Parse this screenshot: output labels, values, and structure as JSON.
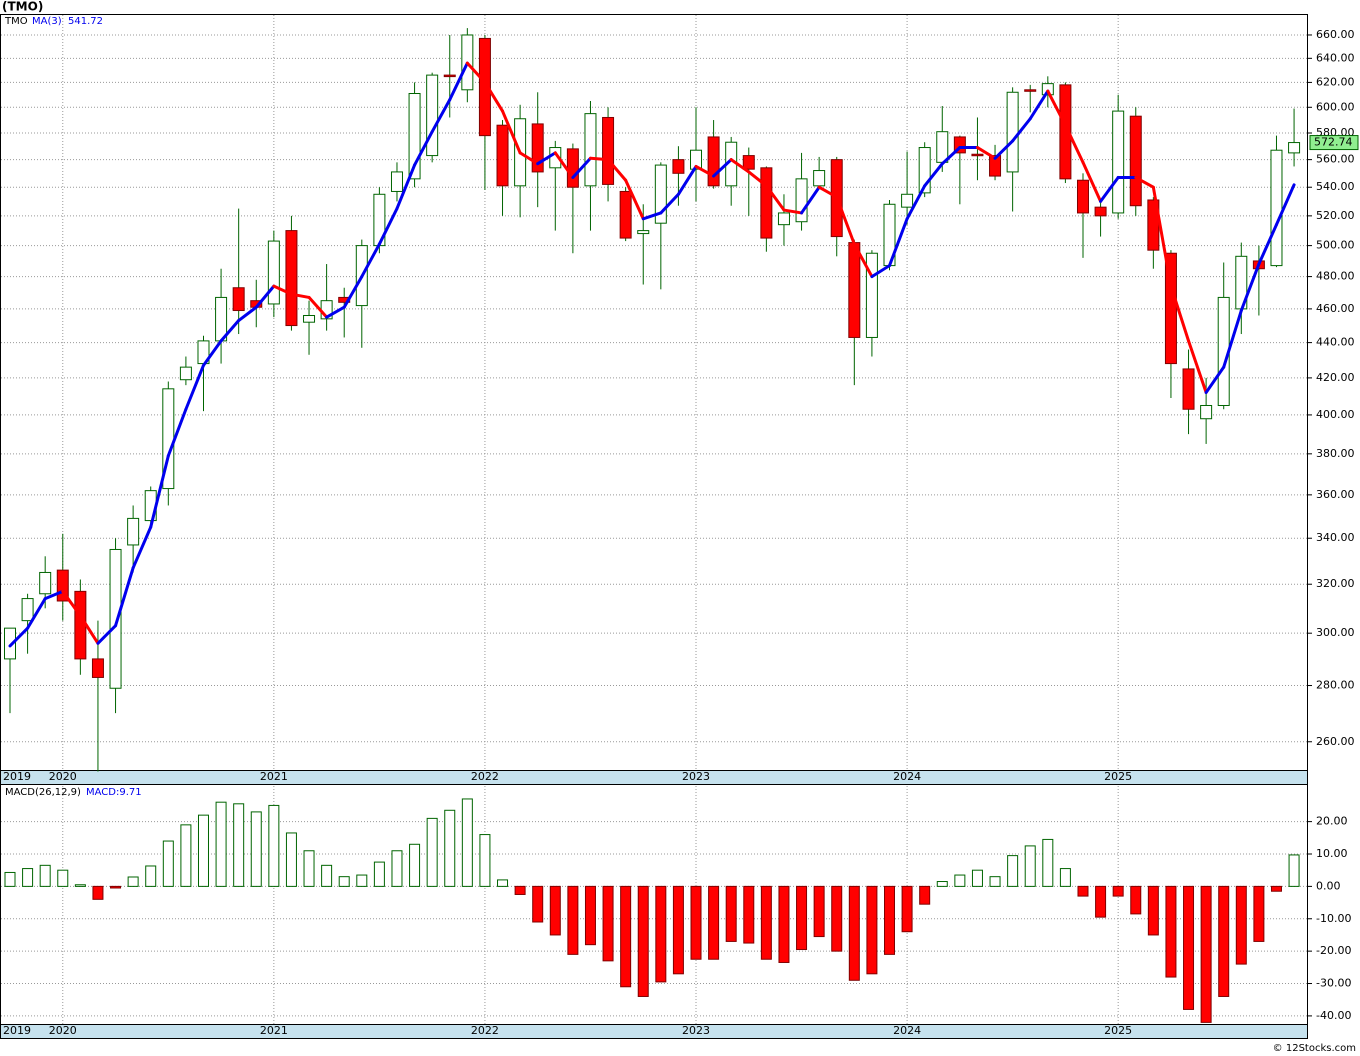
{
  "chart_data": [
    {
      "type": "candlestick",
      "title": "(TMO)",
      "symbol": "TMO",
      "log_scale": true,
      "grid": true,
      "categories": [
        "2019",
        null,
        null,
        "2020",
        null,
        null,
        null,
        null,
        null,
        null,
        null,
        null,
        null,
        null,
        null,
        "2021",
        null,
        null,
        null,
        null,
        null,
        null,
        null,
        null,
        null,
        null,
        null,
        "2022",
        null,
        null,
        null,
        null,
        null,
        null,
        null,
        null,
        null,
        null,
        null,
        "2023",
        null,
        null,
        null,
        null,
        null,
        null,
        null,
        null,
        null,
        null,
        null,
        "2024",
        null,
        null,
        null,
        null,
        null,
        null,
        null,
        null,
        null,
        null,
        null,
        "2025",
        null,
        null,
        null,
        null,
        null,
        null,
        null,
        null,
        null,
        null
      ],
      "open": [
        290,
        305,
        316,
        326,
        317,
        290,
        279,
        337,
        348,
        363,
        419,
        428,
        441,
        473,
        465,
        463,
        510,
        452,
        454,
        467,
        462,
        500,
        537,
        546,
        563,
        626,
        614,
        657,
        586,
        541,
        587,
        554,
        568,
        541,
        592,
        537,
        508,
        515,
        560,
        553,
        577,
        541,
        563,
        554,
        514,
        516,
        541,
        560,
        502,
        443,
        487,
        526,
        536,
        558,
        577,
        564,
        563,
        551,
        614,
        610,
        618,
        545,
        526,
        522,
        593,
        531,
        495,
        425,
        398,
        405,
        460,
        490,
        487,
        565
      ],
      "high": [
        302,
        316,
        332,
        342,
        322,
        305,
        340,
        355,
        364,
        418,
        432,
        444,
        485,
        525,
        478,
        510,
        520,
        465,
        488,
        473,
        504,
        540,
        558,
        620,
        628,
        660,
        666,
        660,
        590,
        602,
        612,
        574,
        572,
        605,
        600,
        540,
        528,
        558,
        570,
        600,
        590,
        577,
        569,
        555,
        535,
        565,
        562,
        562,
        504,
        497,
        531,
        566,
        573,
        601,
        578,
        592,
        571,
        616,
        618,
        625,
        620,
        550,
        529,
        610,
        600,
        533,
        497,
        436,
        420,
        489,
        502,
        500,
        578,
        599
      ],
      "low": [
        270,
        292,
        310,
        305,
        284,
        250,
        270,
        325,
        345,
        355,
        416,
        402,
        428,
        445,
        449,
        455,
        447,
        433,
        447,
        443,
        437,
        495,
        530,
        540,
        558,
        592,
        604,
        538,
        520,
        519,
        526,
        510,
        495,
        510,
        530,
        503,
        475,
        472,
        527,
        530,
        539,
        527,
        520,
        496,
        500,
        510,
        541,
        493,
        416,
        432,
        484,
        514,
        533,
        551,
        528,
        545,
        545,
        523,
        596,
        600,
        543,
        492,
        506,
        518,
        520,
        485,
        409,
        390,
        385,
        403,
        445,
        456,
        486,
        555
      ],
      "close": [
        302,
        314,
        325,
        313,
        290,
        283,
        335,
        349,
        362,
        414,
        426,
        441,
        467,
        459,
        461,
        503,
        450,
        456,
        465,
        464,
        500,
        535,
        551,
        611,
        626,
        625,
        660,
        578,
        541,
        591,
        551,
        569,
        540,
        595,
        542,
        505,
        510,
        556,
        550,
        567,
        541,
        573,
        553,
        505,
        522,
        546,
        552,
        506,
        443,
        495,
        528,
        535,
        569,
        581,
        565,
        563,
        548,
        612,
        613,
        619,
        546,
        522,
        520,
        597,
        527,
        497,
        428,
        403,
        405,
        467,
        493,
        485,
        567,
        572.74
      ],
      "up_color": "#006400",
      "down_color": "#ff0000",
      "tag_color": "#90ee90",
      "ma": {
        "name": "MA(3)",
        "color_up": "#0000ee",
        "color_down": "#ff0000",
        "values": [
          295,
          302,
          314,
          317,
          307,
          296,
          303,
          327,
          345,
          379,
          403,
          427,
          441,
          453,
          461,
          474,
          469,
          467,
          455,
          461,
          480,
          501,
          525,
          556,
          581,
          606,
          636,
          620,
          597,
          565,
          557,
          565,
          547,
          561,
          560,
          545,
          518,
          522,
          535,
          555,
          548,
          560,
          551,
          541,
          524,
          522,
          540,
          533,
          501,
          480,
          487,
          518,
          541,
          557,
          569,
          569,
          561,
          574,
          591,
          613,
          586,
          558,
          530,
          547,
          547,
          540,
          474,
          441,
          412,
          426,
          459,
          488,
          514,
          541.72
        ]
      },
      "ylim": [
        250.5,
        678.5
      ],
      "yticks": [
        {
          "value": 260,
          "label": "260.00"
        },
        {
          "value": 280,
          "label": "280.00"
        },
        {
          "value": 300,
          "label": "300.00"
        },
        {
          "value": 320,
          "label": "320.00"
        },
        {
          "value": 340,
          "label": "340.00"
        },
        {
          "value": 360,
          "label": "360.00"
        },
        {
          "value": 380,
          "label": "380.00"
        },
        {
          "value": 400,
          "label": "400.00"
        },
        {
          "value": 420,
          "label": "420.00"
        },
        {
          "value": 440,
          "label": "440.00"
        },
        {
          "value": 460,
          "label": "460.00"
        },
        {
          "value": 480,
          "label": "480.00"
        },
        {
          "value": 500,
          "label": "500.00"
        },
        {
          "value": 520,
          "label": "520.00"
        },
        {
          "value": 540,
          "label": "540.00"
        },
        {
          "value": 560,
          "label": "560.00"
        },
        {
          "value": 580,
          "label": "580.00"
        },
        {
          "value": 600,
          "label": "600.00"
        },
        {
          "value": 620,
          "label": "620.00"
        },
        {
          "value": 640,
          "label": "640.00"
        },
        {
          "value": 660,
          "label": "660.00"
        }
      ],
      "footer": "© 12Stocks.com"
    },
    {
      "type": "bar",
      "name": "MACD(26,12,9)",
      "last_label": "MACD:9.71",
      "grid": true,
      "pos_color": "#006400",
      "neg_color": "#ff0000",
      "values": [
        4.3,
        5.5,
        6.5,
        5,
        0.5,
        -4,
        -0.5,
        2.9,
        6.3,
        14,
        19,
        22,
        26,
        25.5,
        23,
        25,
        16.5,
        11,
        6.5,
        3,
        3.5,
        7.5,
        11,
        13,
        21,
        23.5,
        27,
        16,
        2,
        -2.5,
        -11,
        -15,
        -21,
        -18,
        -23,
        -31,
        -34,
        -29.5,
        -27,
        -22.5,
        -22.5,
        -17,
        -17.5,
        -22.5,
        -23.5,
        -19.5,
        -15.5,
        -20,
        -29,
        -27,
        -21,
        -14,
        -5.5,
        1.5,
        3.5,
        5,
        3,
        9.5,
        12.5,
        14.5,
        5.5,
        -3,
        -9.5,
        -3,
        -8.5,
        -15,
        -28,
        -38,
        -42,
        -34,
        -24,
        -17,
        -1.5,
        9.71
      ],
      "ylim": [
        -42.5,
        31
      ],
      "yticks": [
        {
          "value": -40,
          "label": "-40.00"
        },
        {
          "value": -30,
          "label": "-30.00"
        },
        {
          "value": -20,
          "label": "-20.00"
        },
        {
          "value": -10,
          "label": "-10.00"
        },
        {
          "value": 0,
          "label": "0.00"
        },
        {
          "value": 10,
          "label": "10.00"
        },
        {
          "value": 20,
          "label": "20.00"
        }
      ]
    }
  ]
}
